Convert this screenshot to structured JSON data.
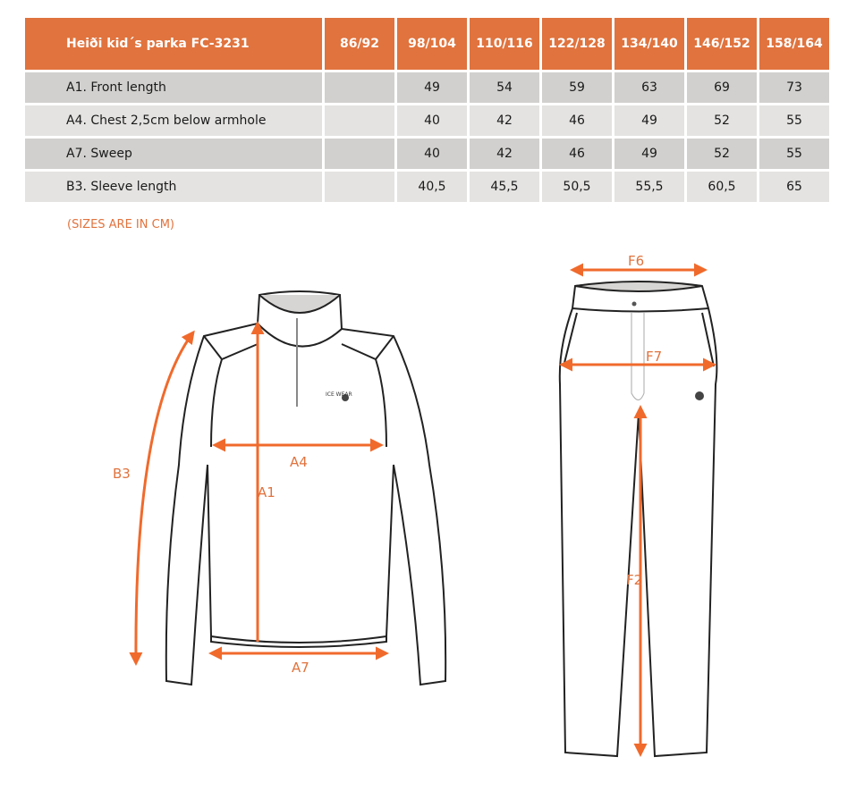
{
  "table": {
    "title": "Heiði kid´s parka FC-3231",
    "sizes": [
      "86/92",
      "98/104",
      "110/116",
      "122/128",
      "134/140",
      "146/152",
      "158/164"
    ],
    "rows": [
      {
        "label": "A1. Front length",
        "values": [
          "",
          "49",
          "54",
          "59",
          "63",
          "69",
          "73"
        ]
      },
      {
        "label": "A4. Chest 2,5cm below armhole",
        "values": [
          "",
          "40",
          "42",
          "46",
          "49",
          "52",
          "55"
        ]
      },
      {
        "label": "A7. Sweep",
        "values": [
          "",
          "40",
          "42",
          "46",
          "49",
          "52",
          "55"
        ]
      },
      {
        "label": "B3. Sleeve length",
        "values": [
          "",
          "40,5",
          "45,5",
          "50,5",
          "55,5",
          "60,5",
          "65"
        ]
      }
    ]
  },
  "note": "(SIZES ARE IN CM)",
  "diagram": {
    "accent": "#e0733e",
    "top_labels": {
      "a1": "A1",
      "a4": "A4",
      "a7": "A7",
      "b3": "B3",
      "logo": "ICE WEAR"
    },
    "pants_labels": {
      "f6": "F6",
      "f7": "F7",
      "f2": "F2"
    }
  }
}
